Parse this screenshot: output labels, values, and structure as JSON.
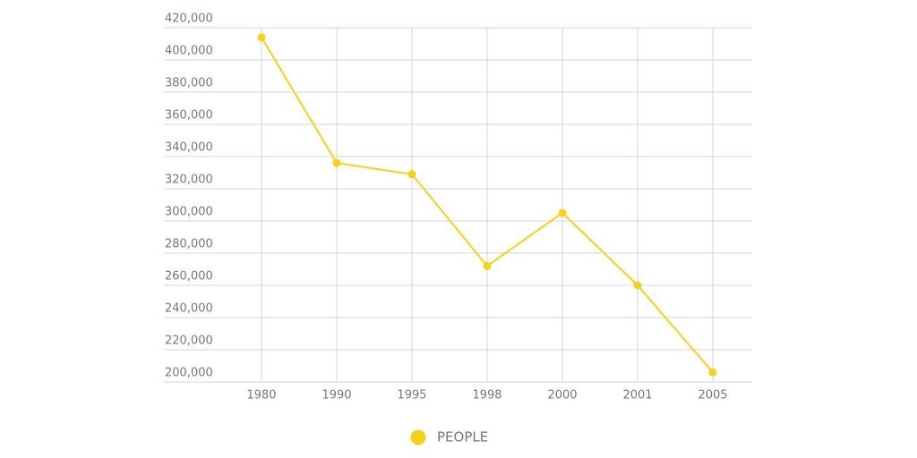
{
  "chart_data": {
    "type": "line",
    "categories": [
      "1980",
      "1990",
      "1995",
      "1998",
      "2000",
      "2001",
      "2005"
    ],
    "series": [
      {
        "name": "PEOPLE",
        "color": "#f7d117",
        "values": [
          414000,
          336000,
          329000,
          272000,
          305000,
          260000,
          206000
        ]
      }
    ],
    "ylim": [
      200000,
      420000
    ],
    "yticks": [
      {
        "value": 200000,
        "label": "200,000"
      },
      {
        "value": 220000,
        "label": "220,000"
      },
      {
        "value": 240000,
        "label": "240,000"
      },
      {
        "value": 260000,
        "label": "260,000"
      },
      {
        "value": 280000,
        "label": "280,000"
      },
      {
        "value": 300000,
        "label": "300,000"
      },
      {
        "value": 320000,
        "label": "320,000"
      },
      {
        "value": 340000,
        "label": "340,000"
      },
      {
        "value": 360000,
        "label": "360,000"
      },
      {
        "value": 380000,
        "label": "380,000"
      },
      {
        "value": 400000,
        "label": "400,000"
      },
      {
        "value": 420000,
        "label": "420,000"
      }
    ],
    "grid": true,
    "legend": "bottom"
  }
}
